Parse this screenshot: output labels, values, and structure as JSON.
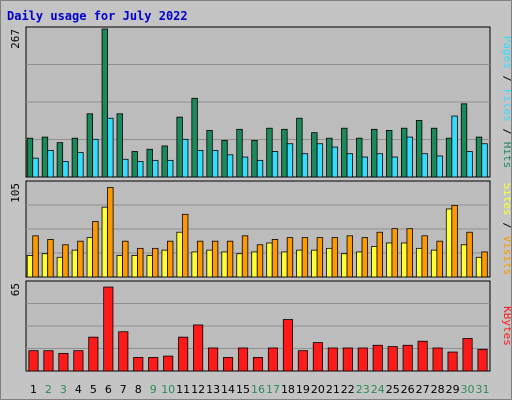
{
  "title": "Daily usage for July 2022",
  "colors": {
    "hits": "#1a8a5c",
    "files": "#33ddff",
    "sites": "#ffff33",
    "visits": "#ff9900",
    "kbytes": "#ff1a1a",
    "weekend": "#2e8b57",
    "weekday": "#000000",
    "panel": "#bcbcbc"
  },
  "chart_data": [
    {
      "type": "bar",
      "panel": "hits-files-pages",
      "scale_label": "267",
      "ymax": 267,
      "side_label": [
        "Pages",
        "Files",
        "Hits"
      ],
      "categories": [
        "1",
        "2",
        "3",
        "4",
        "5",
        "6",
        "7",
        "8",
        "9",
        "10",
        "11",
        "12",
        "13",
        "14",
        "15",
        "16",
        "17",
        "18",
        "19",
        "20",
        "21",
        "22",
        "23",
        "24",
        "25",
        "26",
        "27",
        "28",
        "29",
        "30",
        "31"
      ],
      "series": [
        {
          "name": "Hits",
          "values": [
            70,
            72,
            62,
            70,
            114,
            267,
            114,
            46,
            50,
            56,
            108,
            142,
            84,
            66,
            86,
            66,
            88,
            86,
            106,
            80,
            70,
            88,
            70,
            86,
            84,
            88,
            102,
            88,
            70,
            132,
            72
          ]
        },
        {
          "name": "Files",
          "values": [
            34,
            48,
            28,
            44,
            68,
            106,
            32,
            28,
            30,
            30,
            68,
            48,
            48,
            40,
            36,
            30,
            46,
            60,
            42,
            60,
            54,
            42,
            36,
            42,
            36,
            72,
            42,
            38,
            110,
            46,
            60
          ]
        }
      ],
      "weekend_days": [
        "2",
        "3",
        "9",
        "10",
        "16",
        "17",
        "23",
        "24",
        "30",
        "31"
      ]
    },
    {
      "type": "bar",
      "panel": "visits-sites",
      "scale_label": "105",
      "ymax": 105,
      "side_label": [
        "Sites",
        "Visits"
      ],
      "categories": [
        "1",
        "2",
        "3",
        "4",
        "5",
        "6",
        "7",
        "8",
        "9",
        "10",
        "11",
        "12",
        "13",
        "14",
        "15",
        "16",
        "17",
        "18",
        "19",
        "20",
        "21",
        "22",
        "23",
        "24",
        "25",
        "26",
        "27",
        "28",
        "29",
        "30",
        "31"
      ],
      "series": [
        {
          "name": "Sites",
          "values": [
            24,
            26,
            22,
            30,
            44,
            78,
            24,
            24,
            24,
            30,
            50,
            28,
            30,
            28,
            26,
            28,
            38,
            28,
            30,
            30,
            32,
            26,
            28,
            34,
            38,
            38,
            32,
            30,
            76,
            36,
            22
          ]
        },
        {
          "name": "Visits",
          "values": [
            46,
            42,
            36,
            40,
            62,
            100,
            40,
            32,
            32,
            40,
            70,
            40,
            40,
            40,
            46,
            36,
            42,
            44,
            44,
            44,
            44,
            46,
            44,
            50,
            54,
            54,
            46,
            40,
            80,
            50,
            28
          ]
        }
      ]
    },
    {
      "type": "bar",
      "panel": "kbytes",
      "scale_label": "65",
      "ymax": 65,
      "side_label": [
        "KBytes"
      ],
      "categories": [
        "1",
        "2",
        "3",
        "4",
        "5",
        "6",
        "7",
        "8",
        "9",
        "10",
        "11",
        "12",
        "13",
        "14",
        "15",
        "16",
        "17",
        "18",
        "19",
        "20",
        "21",
        "22",
        "23",
        "24",
        "25",
        "26",
        "27",
        "28",
        "29",
        "30",
        "31"
      ],
      "series": [
        {
          "name": "KBytes",
          "values": [
            15,
            15,
            13,
            15,
            25,
            62,
            29,
            10,
            10,
            11,
            25,
            34,
            17,
            10,
            17,
            10,
            17,
            38,
            15,
            21,
            17,
            17,
            17,
            19,
            18,
            19,
            22,
            17,
            14,
            24,
            16
          ]
        }
      ]
    }
  ]
}
